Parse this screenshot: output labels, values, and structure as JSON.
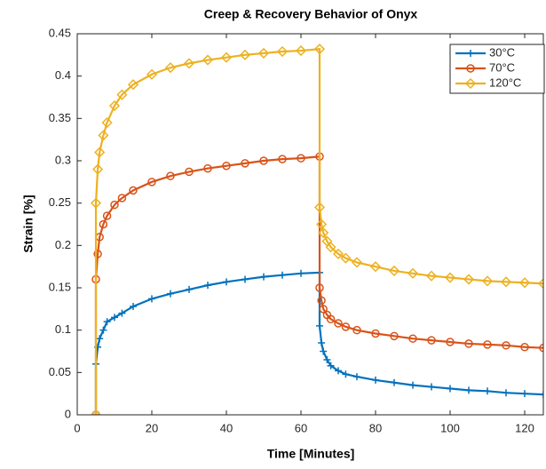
{
  "chart_data": {
    "type": "line",
    "title": "Creep & Recovery Behavior of Onyx",
    "x_label": "Time [Minutes]",
    "y_label": "Strain [%]",
    "x": [
      5,
      5,
      5.5,
      6,
      7,
      8,
      10,
      12,
      15,
      20,
      25,
      30,
      35,
      40,
      45,
      50,
      55,
      60,
      65,
      65,
      65.5,
      66,
      67,
      68,
      70,
      72,
      75,
      80,
      85,
      90,
      95,
      100,
      105,
      110,
      115,
      120,
      125
    ],
    "series": [
      {
        "name": "30°C",
        "color": "#0072bd",
        "marker": "plus",
        "values": [
          0,
          0.06,
          0.08,
          0.09,
          0.1,
          0.11,
          0.115,
          0.12,
          0.128,
          0.137,
          0.143,
          0.148,
          0.153,
          0.157,
          0.16,
          0.163,
          0.165,
          0.167,
          0.168,
          0.105,
          0.085,
          0.075,
          0.065,
          0.058,
          0.052,
          0.048,
          0.045,
          0.041,
          0.038,
          0.035,
          0.033,
          0.031,
          0.029,
          0.028,
          0.026,
          0.025,
          0.024
        ]
      },
      {
        "name": "70°C",
        "color": "#d95319",
        "marker": "circle",
        "values": [
          0,
          0.16,
          0.19,
          0.21,
          0.225,
          0.235,
          0.248,
          0.256,
          0.265,
          0.275,
          0.282,
          0.287,
          0.291,
          0.294,
          0.297,
          0.3,
          0.302,
          0.303,
          0.305,
          0.15,
          0.135,
          0.125,
          0.118,
          0.113,
          0.108,
          0.104,
          0.1,
          0.096,
          0.093,
          0.09,
          0.088,
          0.086,
          0.084,
          0.083,
          0.082,
          0.08,
          0.079
        ]
      },
      {
        "name": "120°C",
        "color": "#edb120",
        "marker": "diamond",
        "values": [
          0,
          0.25,
          0.29,
          0.31,
          0.33,
          0.345,
          0.365,
          0.378,
          0.39,
          0.402,
          0.41,
          0.415,
          0.419,
          0.422,
          0.425,
          0.427,
          0.429,
          0.43,
          0.432,
          0.245,
          0.225,
          0.215,
          0.205,
          0.198,
          0.19,
          0.185,
          0.18,
          0.175,
          0.17,
          0.167,
          0.164,
          0.162,
          0.16,
          0.158,
          0.157,
          0.156,
          0.155
        ]
      }
    ],
    "xlim": [
      0,
      125
    ],
    "ylim": [
      0,
      0.45
    ],
    "xticks": [
      0,
      20,
      40,
      60,
      80,
      100,
      120
    ],
    "yticks": [
      0,
      0.05,
      0.1,
      0.15,
      0.2,
      0.25,
      0.3,
      0.35,
      0.4,
      0.45
    ],
    "legend": "top-right"
  }
}
